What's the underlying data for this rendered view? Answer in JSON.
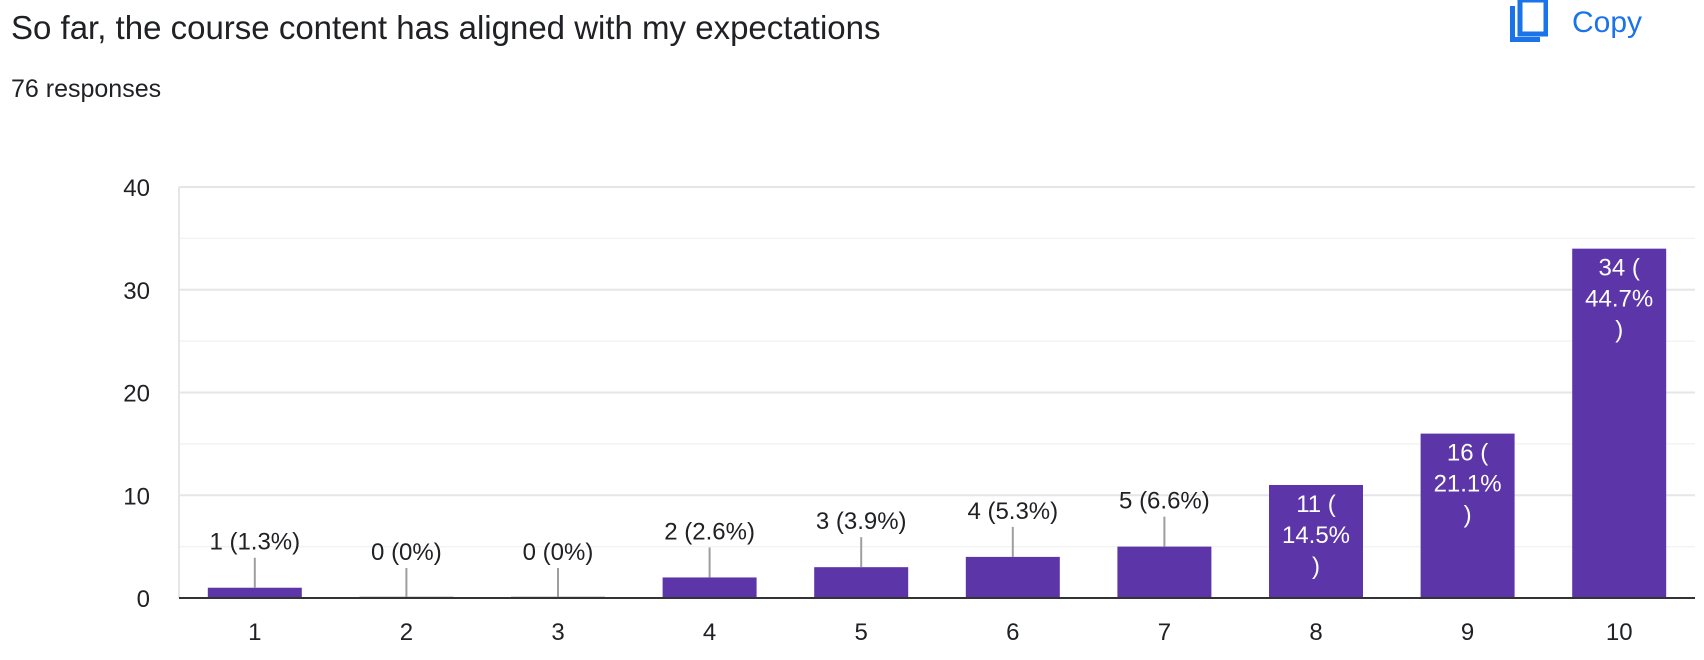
{
  "header": {
    "title": "So far, the course content has aligned with my expectations",
    "responses": "76 responses",
    "copy_label": "Copy",
    "copy_icon": "copy-icon"
  },
  "colors": {
    "bar": "#5c35a8",
    "accent": "#1a73e8",
    "grid": "#e6e6e6"
  },
  "chart_data": {
    "type": "bar",
    "title": "",
    "xlabel": "",
    "ylabel": "",
    "categories": [
      "1",
      "2",
      "3",
      "4",
      "5",
      "6",
      "7",
      "8",
      "9",
      "10"
    ],
    "values": [
      1,
      0,
      0,
      2,
      3,
      4,
      5,
      11,
      16,
      34
    ],
    "labels": [
      "1 (1.3%)",
      "0 (0%)",
      "0 (0%)",
      "2 (2.6%)",
      "3 (3.9%)",
      "4 (5.3%)",
      "5 (6.6%)",
      "11 (14.5%)",
      "16 (21.1%)",
      "34 (44.7%)"
    ],
    "ylim": [
      0,
      40
    ],
    "yticks": [
      0,
      10,
      20,
      30,
      40
    ],
    "grid": true,
    "legend": "none"
  }
}
